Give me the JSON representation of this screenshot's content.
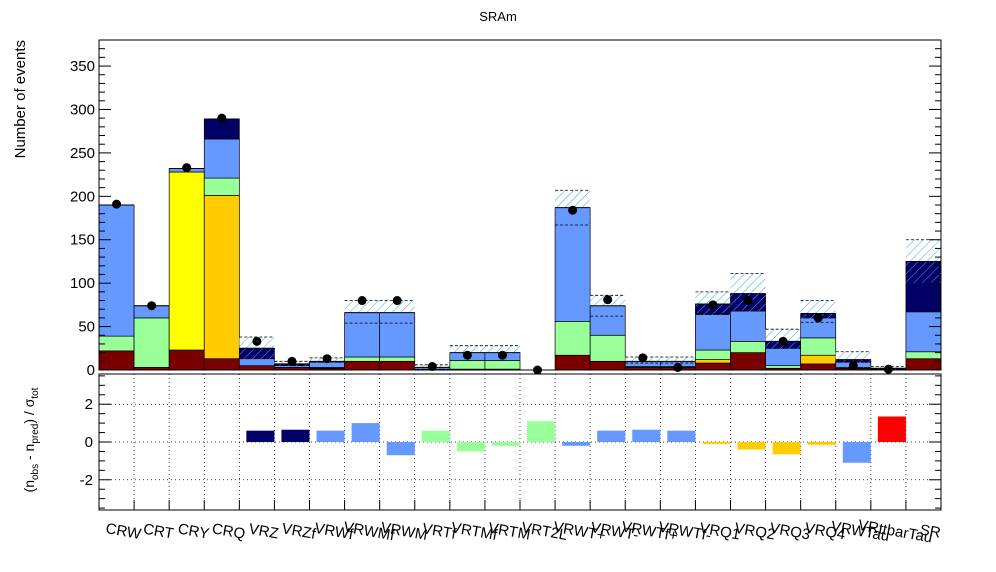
{
  "chart_data": [
    {
      "type": "bar",
      "subtype": "stacked-histogram",
      "title": "SRAm",
      "ylabel": "Number of events",
      "xlabel": "",
      "ylim": [
        0,
        380
      ],
      "yticks": [
        0,
        50,
        100,
        150,
        200,
        250,
        300,
        350
      ],
      "grid": false,
      "legend": "none",
      "categories": [
        "CRW",
        "CRT",
        "CRY",
        "CRQ",
        "VRZ",
        "VRZf",
        "VRWf",
        "VRWMf",
        "VRWM",
        "VRTf",
        "VRTMf",
        "VRTM",
        "VRT2L",
        "VRWT+",
        "VRWT-",
        "VRWTf+",
        "VRWTf-",
        "VRQ1",
        "VRQ2",
        "VRQ3",
        "VRQ4",
        "VRWTau",
        "VRttbarTau",
        "SR"
      ],
      "series": [
        {
          "color": "#7a0000",
          "values": [
            22,
            3,
            23,
            13,
            5,
            3,
            2,
            10,
            10,
            1,
            1,
            1,
            0,
            17,
            10,
            3,
            3,
            8,
            20,
            2,
            7,
            2,
            0,
            13
          ]
        },
        {
          "color": "#ffcc00",
          "values": [
            0,
            0,
            0,
            188,
            0,
            0,
            0,
            0,
            0,
            0,
            0,
            0,
            0,
            0,
            0,
            0,
            0,
            4,
            0,
            0,
            10,
            0,
            0,
            0
          ]
        },
        {
          "color": "#ffff00",
          "values": [
            0,
            0,
            205,
            0,
            0,
            0,
            0,
            0,
            0,
            0,
            0,
            0,
            0,
            0,
            0,
            0,
            0,
            0,
            0,
            0,
            0,
            0,
            0,
            0
          ]
        },
        {
          "color": "#99ff99",
          "values": [
            17,
            57,
            0,
            20,
            0,
            0,
            1,
            5,
            5,
            0,
            10,
            10,
            0,
            39,
            30,
            1,
            1,
            11,
            13,
            3,
            20,
            1,
            0,
            8
          ]
        },
        {
          "color": "#6699ff",
          "values": [
            151,
            14,
            4,
            45,
            8,
            2,
            6,
            51,
            51,
            2,
            9,
            9,
            0,
            131,
            34,
            6,
            6,
            41,
            35,
            20,
            23,
            6,
            1,
            46
          ]
        },
        {
          "color": "#000066",
          "values": [
            0,
            0,
            0,
            23,
            12,
            2,
            1,
            0,
            0,
            0,
            0,
            0,
            0,
            0,
            0,
            0,
            0,
            12,
            20,
            8,
            5,
            3,
            1,
            58
          ]
        }
      ],
      "mc_total": [
        190,
        74,
        232,
        289,
        25,
        7,
        10,
        66,
        66,
        3,
        20,
        20,
        0,
        187,
        74,
        10,
        10,
        76,
        88,
        33,
        65,
        12,
        2,
        125
      ],
      "mc_error": [
        0,
        0,
        0,
        0,
        13,
        3,
        4,
        14,
        14,
        3,
        8,
        8,
        0,
        20,
        12,
        5,
        5,
        14,
        23,
        14,
        15,
        9,
        2,
        25
      ],
      "data": [
        191,
        74,
        233,
        290,
        33,
        10,
        13,
        80,
        80,
        4,
        17,
        17,
        0,
        184,
        81,
        14,
        3,
        75,
        80,
        33,
        60,
        5,
        1,
        null
      ],
      "inner_dashed": [
        0,
        0,
        0,
        0,
        0,
        0,
        0,
        54,
        54,
        0,
        0,
        0,
        0,
        167,
        62,
        8,
        8,
        65,
        68,
        0,
        55,
        10,
        0,
        0
      ]
    },
    {
      "type": "bar",
      "ylabel_parts": {
        "pre": "(n",
        "sub1": "obs",
        "mid": " - n",
        "sub2": "pred",
        "post": ") / σ",
        "sub3": "tot"
      },
      "ylim": [
        -3.6,
        3.6
      ],
      "yticks": [
        -2,
        0,
        2
      ],
      "grid": true,
      "categories": [
        "CRW",
        "CRT",
        "CRY",
        "CRQ",
        "VRZ",
        "VRZf",
        "VRWf",
        "VRWMf",
        "VRWM",
        "VRTf",
        "VRTMf",
        "VRTM",
        "VRT2L",
        "VRWT+",
        "VRWT-",
        "VRWTf+",
        "VRWTf-",
        "VRQ1",
        "VRQ2",
        "VRQ3",
        "VRQ4",
        "VRWTau",
        "VRttbarTau",
        "SR"
      ],
      "values": [
        0,
        0,
        0,
        0,
        0.6,
        0.65,
        0.6,
        1.0,
        -0.7,
        0.6,
        -0.5,
        -0.2,
        1.1,
        -0.2,
        0.6,
        0.65,
        0.6,
        -0.1,
        -0.4,
        -0.65,
        -0.15,
        -1.1,
        1.35,
        0
      ],
      "colors": [
        "#6699ff",
        "#99ff99",
        "#ffff00",
        "#ffcc00",
        "#000066",
        "#000066",
        "#6699ff",
        "#6699ff",
        "#6699ff",
        "#99ff99",
        "#99ff99",
        "#99ff99",
        "#99ff99",
        "#6699ff",
        "#6699ff",
        "#6699ff",
        "#6699ff",
        "#ffcc00",
        "#ffcc00",
        "#ffcc00",
        "#ffcc00",
        "#6699ff",
        "#ff0000",
        "#6699ff"
      ]
    }
  ]
}
